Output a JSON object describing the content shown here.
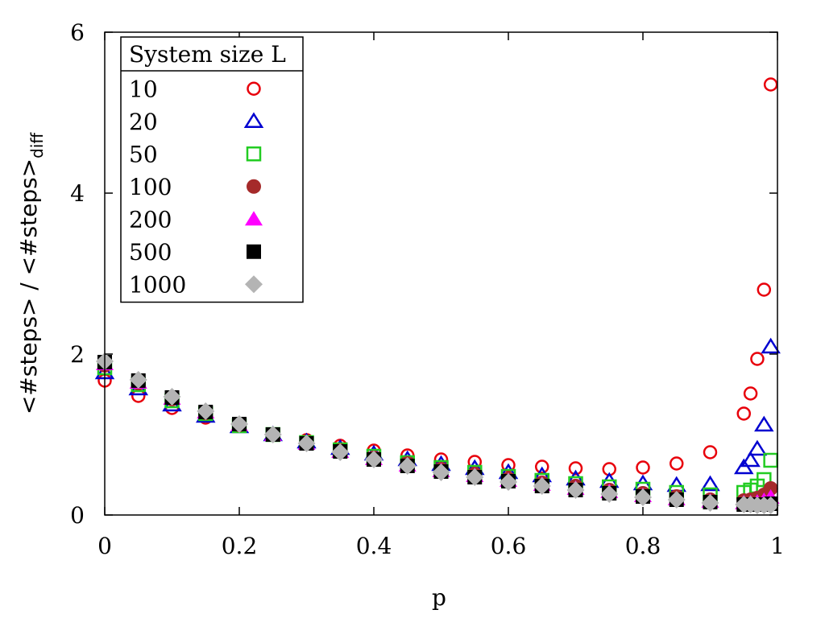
{
  "chart_data": {
    "type": "scatter",
    "title": "",
    "xlabel": "p",
    "ylabel": "<#steps> / <#steps>",
    "ylabel_subscript": "diff",
    "xlim": [
      0,
      1
    ],
    "ylim": [
      0,
      6
    ],
    "xticks": [
      0,
      0.2,
      0.4,
      0.6,
      0.8,
      1
    ],
    "xtick_labels": [
      "0",
      "0.2",
      "0.4",
      "0.6",
      "0.8",
      "1"
    ],
    "yticks": [
      0,
      2,
      4,
      6
    ],
    "ytick_labels": [
      "0",
      "2",
      "4",
      "6"
    ],
    "grid": false,
    "legend": {
      "title": "System size L",
      "placement": "top-left"
    },
    "series": [
      {
        "name": "10",
        "marker": "circle-open",
        "color": "#e8000b",
        "points": [
          [
            0,
            1.67
          ],
          [
            0.05,
            1.48
          ],
          [
            0.1,
            1.33
          ],
          [
            0.15,
            1.21
          ],
          [
            0.2,
            1.11
          ],
          [
            0.25,
            1.0
          ],
          [
            0.3,
            0.93
          ],
          [
            0.35,
            0.86
          ],
          [
            0.4,
            0.8
          ],
          [
            0.45,
            0.74
          ],
          [
            0.5,
            0.69
          ],
          [
            0.55,
            0.66
          ],
          [
            0.6,
            0.62
          ],
          [
            0.65,
            0.6
          ],
          [
            0.7,
            0.58
          ],
          [
            0.75,
            0.57
          ],
          [
            0.8,
            0.59
          ],
          [
            0.85,
            0.64
          ],
          [
            0.9,
            0.78
          ],
          [
            0.95,
            1.26
          ],
          [
            0.96,
            1.51
          ],
          [
            0.97,
            1.94
          ],
          [
            0.98,
            2.8
          ],
          [
            0.99,
            5.35
          ]
        ]
      },
      {
        "name": "20",
        "marker": "triangle-open",
        "color": "#0000d0",
        "points": [
          [
            0,
            1.77
          ],
          [
            0.05,
            1.57
          ],
          [
            0.1,
            1.37
          ],
          [
            0.15,
            1.23
          ],
          [
            0.2,
            1.1
          ],
          [
            0.25,
            1.0
          ],
          [
            0.3,
            0.91
          ],
          [
            0.35,
            0.83
          ],
          [
            0.4,
            0.76
          ],
          [
            0.45,
            0.69
          ],
          [
            0.5,
            0.63
          ],
          [
            0.55,
            0.58
          ],
          [
            0.6,
            0.53
          ],
          [
            0.65,
            0.49
          ],
          [
            0.7,
            0.45
          ],
          [
            0.75,
            0.42
          ],
          [
            0.8,
            0.39
          ],
          [
            0.85,
            0.37
          ],
          [
            0.9,
            0.38
          ],
          [
            0.95,
            0.59
          ],
          [
            0.96,
            0.68
          ],
          [
            0.97,
            0.82
          ],
          [
            0.98,
            1.12
          ],
          [
            0.99,
            2.09
          ]
        ]
      },
      {
        "name": "50",
        "marker": "square-open",
        "color": "#22cc22",
        "points": [
          [
            0,
            1.83
          ],
          [
            0.05,
            1.62
          ],
          [
            0.1,
            1.42
          ],
          [
            0.15,
            1.26
          ],
          [
            0.2,
            1.11
          ],
          [
            0.25,
            1.0
          ],
          [
            0.3,
            0.9
          ],
          [
            0.35,
            0.81
          ],
          [
            0.4,
            0.73
          ],
          [
            0.45,
            0.65
          ],
          [
            0.5,
            0.59
          ],
          [
            0.55,
            0.53
          ],
          [
            0.6,
            0.48
          ],
          [
            0.65,
            0.43
          ],
          [
            0.7,
            0.39
          ],
          [
            0.75,
            0.35
          ],
          [
            0.8,
            0.32
          ],
          [
            0.85,
            0.28
          ],
          [
            0.9,
            0.25
          ],
          [
            0.95,
            0.28
          ],
          [
            0.96,
            0.31
          ],
          [
            0.97,
            0.36
          ],
          [
            0.98,
            0.44
          ],
          [
            0.99,
            0.68
          ]
        ]
      },
      {
        "name": "100",
        "marker": "circle-filled",
        "color": "#a52a2a",
        "points": [
          [
            0,
            1.86
          ],
          [
            0.05,
            1.64
          ],
          [
            0.1,
            1.44
          ],
          [
            0.15,
            1.27
          ],
          [
            0.2,
            1.12
          ],
          [
            0.25,
            1.0
          ],
          [
            0.3,
            0.89
          ],
          [
            0.35,
            0.8
          ],
          [
            0.4,
            0.71
          ],
          [
            0.45,
            0.64
          ],
          [
            0.5,
            0.57
          ],
          [
            0.55,
            0.51
          ],
          [
            0.6,
            0.45
          ],
          [
            0.65,
            0.4
          ],
          [
            0.7,
            0.36
          ],
          [
            0.75,
            0.31
          ],
          [
            0.8,
            0.27
          ],
          [
            0.85,
            0.23
          ],
          [
            0.9,
            0.19
          ],
          [
            0.95,
            0.18
          ],
          [
            0.96,
            0.19
          ],
          [
            0.97,
            0.21
          ],
          [
            0.98,
            0.25
          ],
          [
            0.99,
            0.33
          ]
        ]
      },
      {
        "name": "200",
        "marker": "triangle-filled",
        "color": "#ff00ff",
        "points": [
          [
            0,
            1.88
          ],
          [
            0.05,
            1.65
          ],
          [
            0.1,
            1.45
          ],
          [
            0.15,
            1.28
          ],
          [
            0.2,
            1.12
          ],
          [
            0.25,
            1.0
          ],
          [
            0.3,
            0.89
          ],
          [
            0.35,
            0.79
          ],
          [
            0.4,
            0.7
          ],
          [
            0.45,
            0.62
          ],
          [
            0.5,
            0.55
          ],
          [
            0.55,
            0.49
          ],
          [
            0.6,
            0.43
          ],
          [
            0.65,
            0.38
          ],
          [
            0.7,
            0.33
          ],
          [
            0.75,
            0.29
          ],
          [
            0.8,
            0.24
          ],
          [
            0.85,
            0.2
          ],
          [
            0.9,
            0.17
          ],
          [
            0.95,
            0.15
          ],
          [
            0.96,
            0.15
          ],
          [
            0.97,
            0.16
          ],
          [
            0.98,
            0.18
          ],
          [
            0.99,
            0.22
          ]
        ]
      },
      {
        "name": "500",
        "marker": "square-filled",
        "color": "#000000",
        "points": [
          [
            0,
            1.9
          ],
          [
            0.05,
            1.67
          ],
          [
            0.1,
            1.46
          ],
          [
            0.15,
            1.28
          ],
          [
            0.2,
            1.13
          ],
          [
            0.25,
            1.0
          ],
          [
            0.3,
            0.89
          ],
          [
            0.35,
            0.79
          ],
          [
            0.4,
            0.69
          ],
          [
            0.45,
            0.61
          ],
          [
            0.5,
            0.54
          ],
          [
            0.55,
            0.47
          ],
          [
            0.6,
            0.42
          ],
          [
            0.65,
            0.36
          ],
          [
            0.7,
            0.31
          ],
          [
            0.75,
            0.27
          ],
          [
            0.8,
            0.23
          ],
          [
            0.85,
            0.19
          ],
          [
            0.9,
            0.16
          ],
          [
            0.95,
            0.13
          ],
          [
            0.96,
            0.13
          ],
          [
            0.97,
            0.13
          ],
          [
            0.98,
            0.13
          ],
          [
            0.99,
            0.14
          ]
        ]
      },
      {
        "name": "1000",
        "marker": "diamond-filled",
        "color": "#b4b4b4",
        "points": [
          [
            0,
            1.91
          ],
          [
            0.05,
            1.68
          ],
          [
            0.1,
            1.47
          ],
          [
            0.15,
            1.29
          ],
          [
            0.2,
            1.13
          ],
          [
            0.25,
            1.0
          ],
          [
            0.3,
            0.89
          ],
          [
            0.35,
            0.78
          ],
          [
            0.4,
            0.69
          ],
          [
            0.45,
            0.61
          ],
          [
            0.5,
            0.53
          ],
          [
            0.55,
            0.47
          ],
          [
            0.6,
            0.41
          ],
          [
            0.65,
            0.36
          ],
          [
            0.7,
            0.31
          ],
          [
            0.75,
            0.26
          ],
          [
            0.8,
            0.22
          ],
          [
            0.85,
            0.19
          ],
          [
            0.9,
            0.15
          ],
          [
            0.95,
            0.13
          ],
          [
            0.96,
            0.13
          ],
          [
            0.97,
            0.12
          ],
          [
            0.98,
            0.12
          ],
          [
            0.99,
            0.12
          ]
        ]
      }
    ]
  }
}
